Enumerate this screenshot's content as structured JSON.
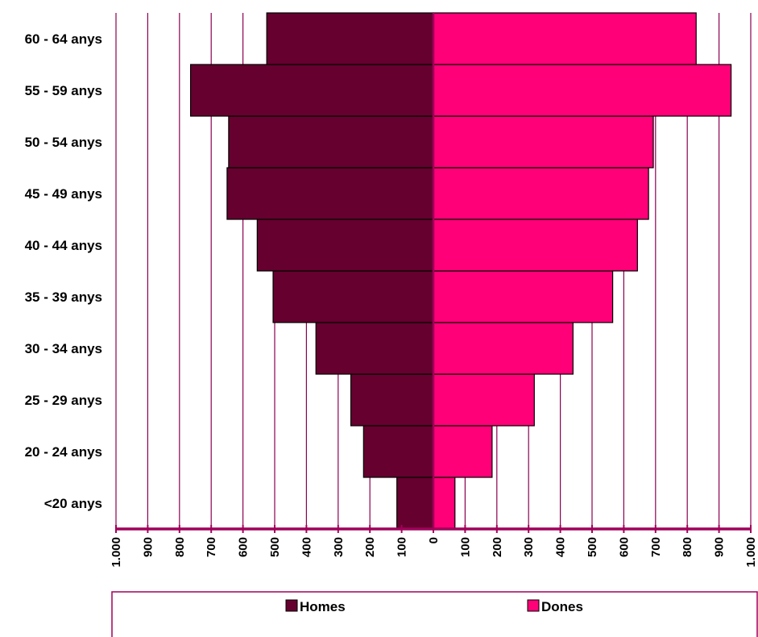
{
  "chart_data": {
    "type": "bar",
    "orientation": "horizontal",
    "subtype": "population-pyramid",
    "categories": [
      "<20 anys",
      "20 - 24 anys",
      "25 - 29 anys",
      "30 - 34 anys",
      "35 - 39 anys",
      "40 - 44 anys",
      "45 - 49 anys",
      "50 - 54 anys",
      "55 - 59 anys",
      "60 - 64 anys"
    ],
    "series": [
      {
        "name": "Homes",
        "side": "left",
        "color": "#66002e",
        "values": [
          115,
          220,
          260,
          370,
          505,
          555,
          650,
          645,
          765,
          525
        ]
      },
      {
        "name": "Dones",
        "side": "right",
        "color": "#ff0078",
        "values": [
          68,
          185,
          318,
          440,
          565,
          643,
          678,
          693,
          938,
          828
        ]
      }
    ],
    "xlim": [
      -1000,
      1000
    ],
    "x_ticks": [
      "1.000",
      "900",
      "800",
      "700",
      "600",
      "500",
      "400",
      "300",
      "200",
      "100",
      "0",
      "100",
      "200",
      "300",
      "400",
      "500",
      "600",
      "700",
      "800",
      "900",
      "1.000"
    ],
    "grid": "vertical",
    "grid_color": "#8b0050",
    "axis_color": "#a0005a",
    "legend_position": "bottom",
    "title": "",
    "xlabel": "",
    "ylabel": ""
  }
}
